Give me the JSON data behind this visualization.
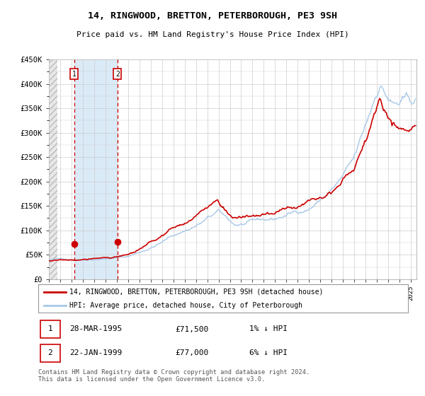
{
  "title": "14, RINGWOOD, BRETTON, PETERBOROUGH, PE3 9SH",
  "subtitle": "Price paid vs. HM Land Registry's House Price Index (HPI)",
  "legend_line1": "14, RINGWOOD, BRETTON, PETERBOROUGH, PE3 9SH (detached house)",
  "legend_line2": "HPI: Average price, detached house, City of Peterborough",
  "footnote": "Contains HM Land Registry data © Crown copyright and database right 2024.\nThis data is licensed under the Open Government Licence v3.0.",
  "transaction1_date": "28-MAR-1995",
  "transaction1_price": "£71,500",
  "transaction1_hpi": "1% ↓ HPI",
  "transaction2_date": "22-JAN-1999",
  "transaction2_price": "£77,000",
  "transaction2_hpi": "6% ↓ HPI",
  "hpi_color": "#a8c8e8",
  "price_color": "#cc0000",
  "dashed_line_color": "#cc0000",
  "shade_color": "#daeaf7",
  "grid_color": "#cccccc",
  "ylim": [
    0,
    450000
  ],
  "yticks": [
    0,
    50000,
    100000,
    150000,
    200000,
    250000,
    300000,
    350000,
    400000,
    450000
  ],
  "ytick_labels": [
    "£0",
    "£50K",
    "£100K",
    "£150K",
    "£200K",
    "£250K",
    "£300K",
    "£350K",
    "£400K",
    "£450K"
  ],
  "transaction1_x": 1995.24,
  "transaction2_x": 1999.06,
  "transaction1_y": 71500,
  "transaction2_y": 77000,
  "xmin": 1993.0,
  "xmax": 2025.5
}
